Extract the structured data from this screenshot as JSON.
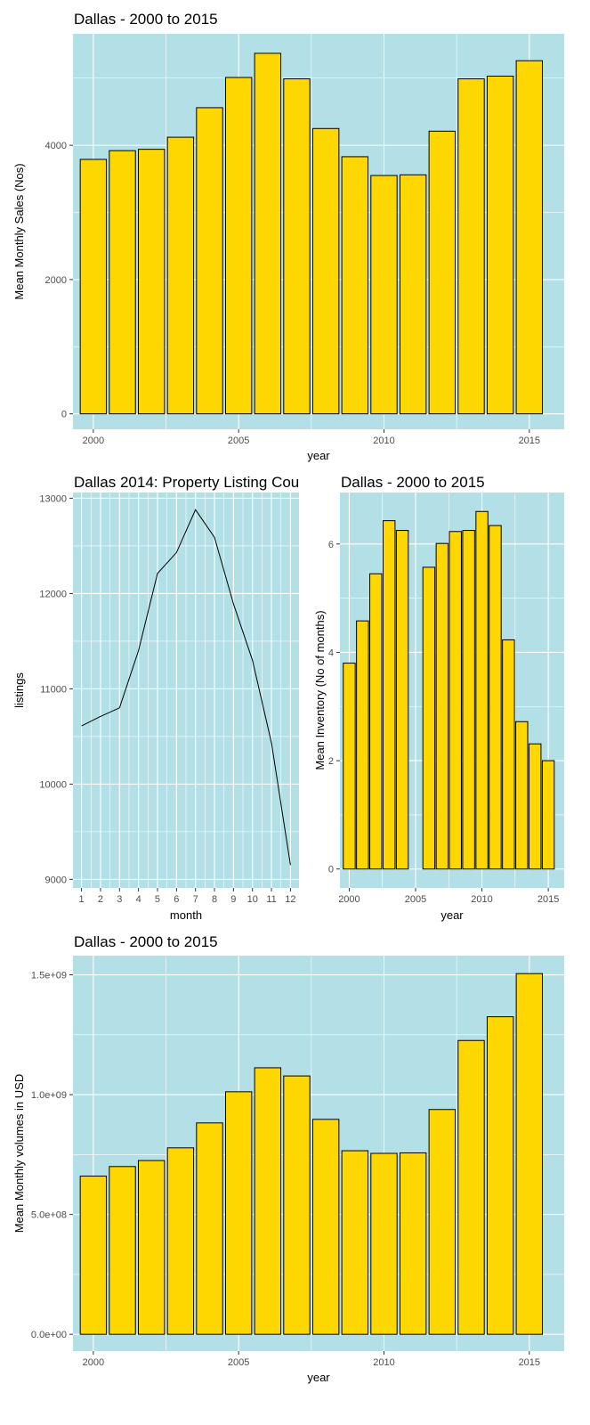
{
  "colors": {
    "panel": "#b3dfe6",
    "bar_fill": "#ffd700",
    "bar_stroke": "#000000",
    "grid": "#ffffff",
    "line": "#000000"
  },
  "chart_data": [
    {
      "type": "bar",
      "title": "Dallas - 2000 to 2015",
      "xlabel": "year",
      "ylabel": "Mean Monthly Sales (Nos)",
      "xlim": [
        1999.3,
        2016.2
      ],
      "ylim": [
        -230,
        5660
      ],
      "xticks": [
        2000,
        2005,
        2010,
        2015
      ],
      "xtick_labels": [
        "2000",
        "2005",
        "2010",
        "2015"
      ],
      "yticks": [
        0,
        2000,
        4000
      ],
      "ytick_labels": [
        "0",
        "2000",
        "4000"
      ],
      "x": [
        2000,
        2001,
        2002,
        2003,
        2004,
        2005,
        2006,
        2007,
        2008,
        2009,
        2010,
        2011,
        2012,
        2013,
        2014,
        2015
      ],
      "values": [
        3790,
        3920,
        3940,
        4120,
        4560,
        5010,
        5370,
        4990,
        4250,
        3830,
        3550,
        3560,
        4210,
        4990,
        5030,
        5260
      ]
    },
    {
      "type": "line",
      "title": "Dallas 2014: Property Listing Cou",
      "xlabel": "month",
      "ylabel": "listings",
      "xlim": [
        0.55,
        12.45
      ],
      "ylim": [
        8910,
        13060
      ],
      "xticks": [
        1,
        2,
        3,
        4,
        5,
        6,
        7,
        8,
        9,
        10,
        11,
        12
      ],
      "xtick_labels": [
        "1",
        "2",
        "3",
        "4",
        "5",
        "6",
        "7",
        "8",
        "9",
        "10",
        "11",
        "12"
      ],
      "yticks": [
        9000,
        10000,
        11000,
        12000,
        13000
      ],
      "ytick_labels": [
        "9000",
        "10000",
        "11000",
        "12000",
        "13000"
      ],
      "x": [
        1,
        2,
        3,
        4,
        5,
        6,
        7,
        8,
        9,
        10,
        11,
        12
      ],
      "values": [
        10610,
        10710,
        10800,
        11400,
        12210,
        12430,
        12880,
        12590,
        11890,
        11300,
        10430,
        9150
      ]
    },
    {
      "type": "bar",
      "title": "Dallas - 2000 to 2015",
      "xlabel": "year",
      "ylabel": "Mean Inventory (No of months)",
      "xlim": [
        1999.3,
        2016.2
      ],
      "ylim": [
        -0.35,
        6.95
      ],
      "xticks": [
        2000,
        2005,
        2010,
        2015
      ],
      "xtick_labels": [
        "2000",
        "2005",
        "2010",
        "2015"
      ],
      "yticks": [
        0,
        2,
        4,
        6
      ],
      "ytick_labels": [
        "0",
        "2",
        "4",
        "6"
      ],
      "x": [
        2000,
        2001,
        2002,
        2003,
        2004,
        2006,
        2007,
        2008,
        2009,
        2010,
        2011,
        2012,
        2013,
        2014,
        2015
      ],
      "values": [
        3.8,
        4.58,
        5.45,
        6.43,
        6.25,
        5.57,
        6.01,
        6.23,
        6.25,
        6.6,
        6.34,
        4.23,
        2.72,
        2.31,
        2.0
      ]
    },
    {
      "type": "bar",
      "title": "Dallas - 2000 to 2015",
      "xlabel": "year",
      "ylabel": "Mean Monthly volumes in USD",
      "xlim": [
        1999.3,
        2016.2
      ],
      "ylim": [
        -70000000,
        1580000000
      ],
      "xticks": [
        2000,
        2005,
        2010,
        2015
      ],
      "xtick_labels": [
        "2000",
        "2005",
        "2010",
        "2015"
      ],
      "yticks": [
        0,
        500000000,
        1000000000,
        1500000000
      ],
      "ytick_labels": [
        "0.0e+00",
        "5.0e+08",
        "1.0e+09",
        "1.5e+09"
      ],
      "x": [
        2000,
        2001,
        2002,
        2003,
        2004,
        2005,
        2006,
        2007,
        2008,
        2009,
        2010,
        2011,
        2012,
        2013,
        2014,
        2015
      ],
      "values": [
        660000000,
        700000000,
        725000000,
        778000000,
        882000000,
        1012000000,
        1112000000,
        1078000000,
        897000000,
        766000000,
        755000000,
        757000000,
        938000000,
        1226000000,
        1325000000,
        1505000000
      ]
    }
  ]
}
